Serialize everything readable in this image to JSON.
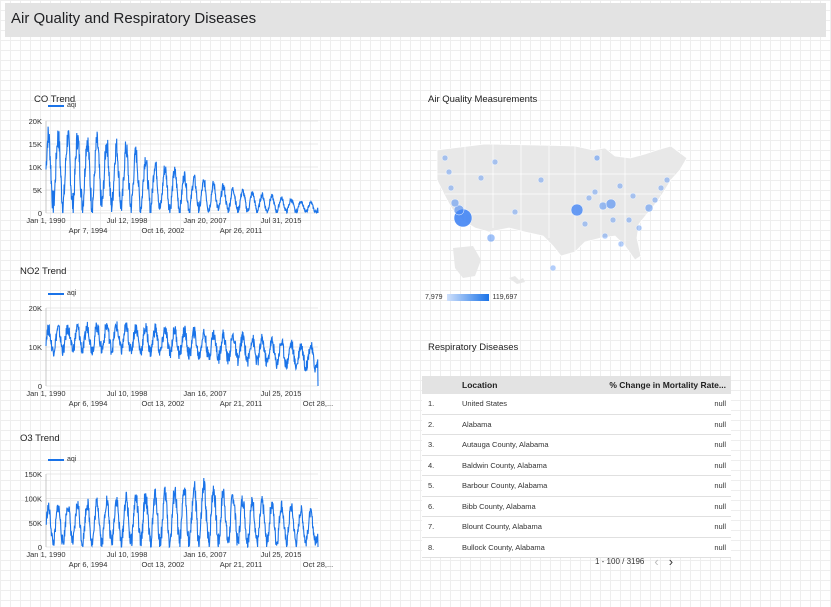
{
  "report": {
    "title": "Air Quality and Respiratory Diseases"
  },
  "colors": {
    "line": "#1a73e8",
    "bubble": "#4285f4",
    "header_bg": "#e3e3e3"
  },
  "charts": [
    {
      "id": "co",
      "title": "CO Trend",
      "legend": "aqi",
      "y_ticks": [
        "20K",
        "15K",
        "10K",
        "5K",
        "0"
      ],
      "x_ticks_row1": [
        "Jan 1, 1990",
        "Jul 12, 1998",
        "Jan 20, 2007",
        "Jul 31, 2015"
      ],
      "x_ticks_row2": [
        "Apr 7, 1994",
        "Oct 16, 2002",
        "Apr 26, 2011"
      ]
    },
    {
      "id": "no2",
      "title": "NO2 Trend",
      "legend": "aqi",
      "y_ticks": [
        "20K",
        "10K",
        "0"
      ],
      "x_ticks_row1": [
        "Jan 1, 1990",
        "Jul 10, 1998",
        "Jan 16, 2007",
        "Jul 25, 2015"
      ],
      "x_ticks_row2": [
        "Apr 6, 1994",
        "Oct 13, 2002",
        "Apr 21, 2011",
        "Oct 28,..."
      ]
    },
    {
      "id": "o3",
      "title": "O3 Trend",
      "legend": "aqi",
      "y_ticks": [
        "150K",
        "100K",
        "50K",
        "0"
      ],
      "x_ticks_row1": [
        "Jan 1, 1990",
        "Jul 10, 1998",
        "Jan 16, 2007",
        "Jul 25, 2015"
      ],
      "x_ticks_row2": [
        "Apr 6, 1994",
        "Oct 13, 2002",
        "Apr 21, 2011",
        "Oct 28,..."
      ]
    }
  ],
  "chart_data": [
    {
      "type": "line",
      "title": "CO Trend",
      "series": [
        {
          "name": "aqi"
        }
      ],
      "x_range": [
        "1990-01-01",
        "2017-12-31"
      ],
      "ylim": [
        0,
        20000
      ],
      "envelope": {
        "x": [
          1990,
          1994,
          1998,
          2002,
          2006,
          2010,
          2014,
          2017
        ],
        "peak": [
          17000,
          16000,
          14000,
          9500,
          6500,
          4500,
          3000,
          2000
        ],
        "base": [
          2000,
          2000,
          1500,
          1000,
          800,
          500,
          300,
          200
        ]
      },
      "seasonal_cycles": 28
    },
    {
      "type": "line",
      "title": "NO2 Trend",
      "series": [
        {
          "name": "aqi"
        }
      ],
      "x_range": [
        "1990-01-01",
        "2017-10-28"
      ],
      "ylim": [
        0,
        20000
      ],
      "envelope": {
        "x": [
          1990,
          1996,
          2002,
          2008,
          2014,
          2017
        ],
        "peak": [
          14500,
          15500,
          14500,
          13000,
          11000,
          10000
        ],
        "base": [
          9000,
          9500,
          8500,
          7000,
          5500,
          4500
        ]
      },
      "seasonal_cycles": 28
    },
    {
      "type": "line",
      "title": "O3 Trend",
      "series": [
        {
          "name": "aqi"
        }
      ],
      "x_range": [
        "1990-01-01",
        "2017-10-28"
      ],
      "ylim": [
        0,
        150000
      ],
      "envelope": {
        "x": [
          1990,
          1996,
          2002,
          2006,
          2010,
          2014,
          2017
        ],
        "peak": [
          80000,
          95000,
          110000,
          125000,
          95000,
          85000,
          65000
        ],
        "base": [
          10000,
          10000,
          10000,
          10000,
          10000,
          10000,
          10000
        ]
      },
      "seasonal_cycles": 28
    }
  ],
  "map": {
    "title": "Air Quality Measurements",
    "scale_min": "7,979",
    "scale_max": "119,697"
  },
  "table": {
    "title": "Respiratory Diseases",
    "headers": [
      "",
      "Location",
      "% Change in Mortality Rate..."
    ],
    "rows": [
      [
        "1.",
        "United States",
        "null"
      ],
      [
        "2.",
        "Alabama",
        "null"
      ],
      [
        "3.",
        "Autauga County, Alabama",
        "null"
      ],
      [
        "4.",
        "Baldwin County, Alabama",
        "null"
      ],
      [
        "5.",
        "Barbour County, Alabama",
        "null"
      ],
      [
        "6.",
        "Bibb County, Alabama",
        "null"
      ],
      [
        "7.",
        "Blount County, Alabama",
        "null"
      ],
      [
        "8.",
        "Bullock County, Alabama",
        "null"
      ]
    ],
    "pagination": "1 - 100 / 3196",
    "prev_icon": "chevron-left-icon",
    "next_icon": "chevron-right-icon"
  }
}
